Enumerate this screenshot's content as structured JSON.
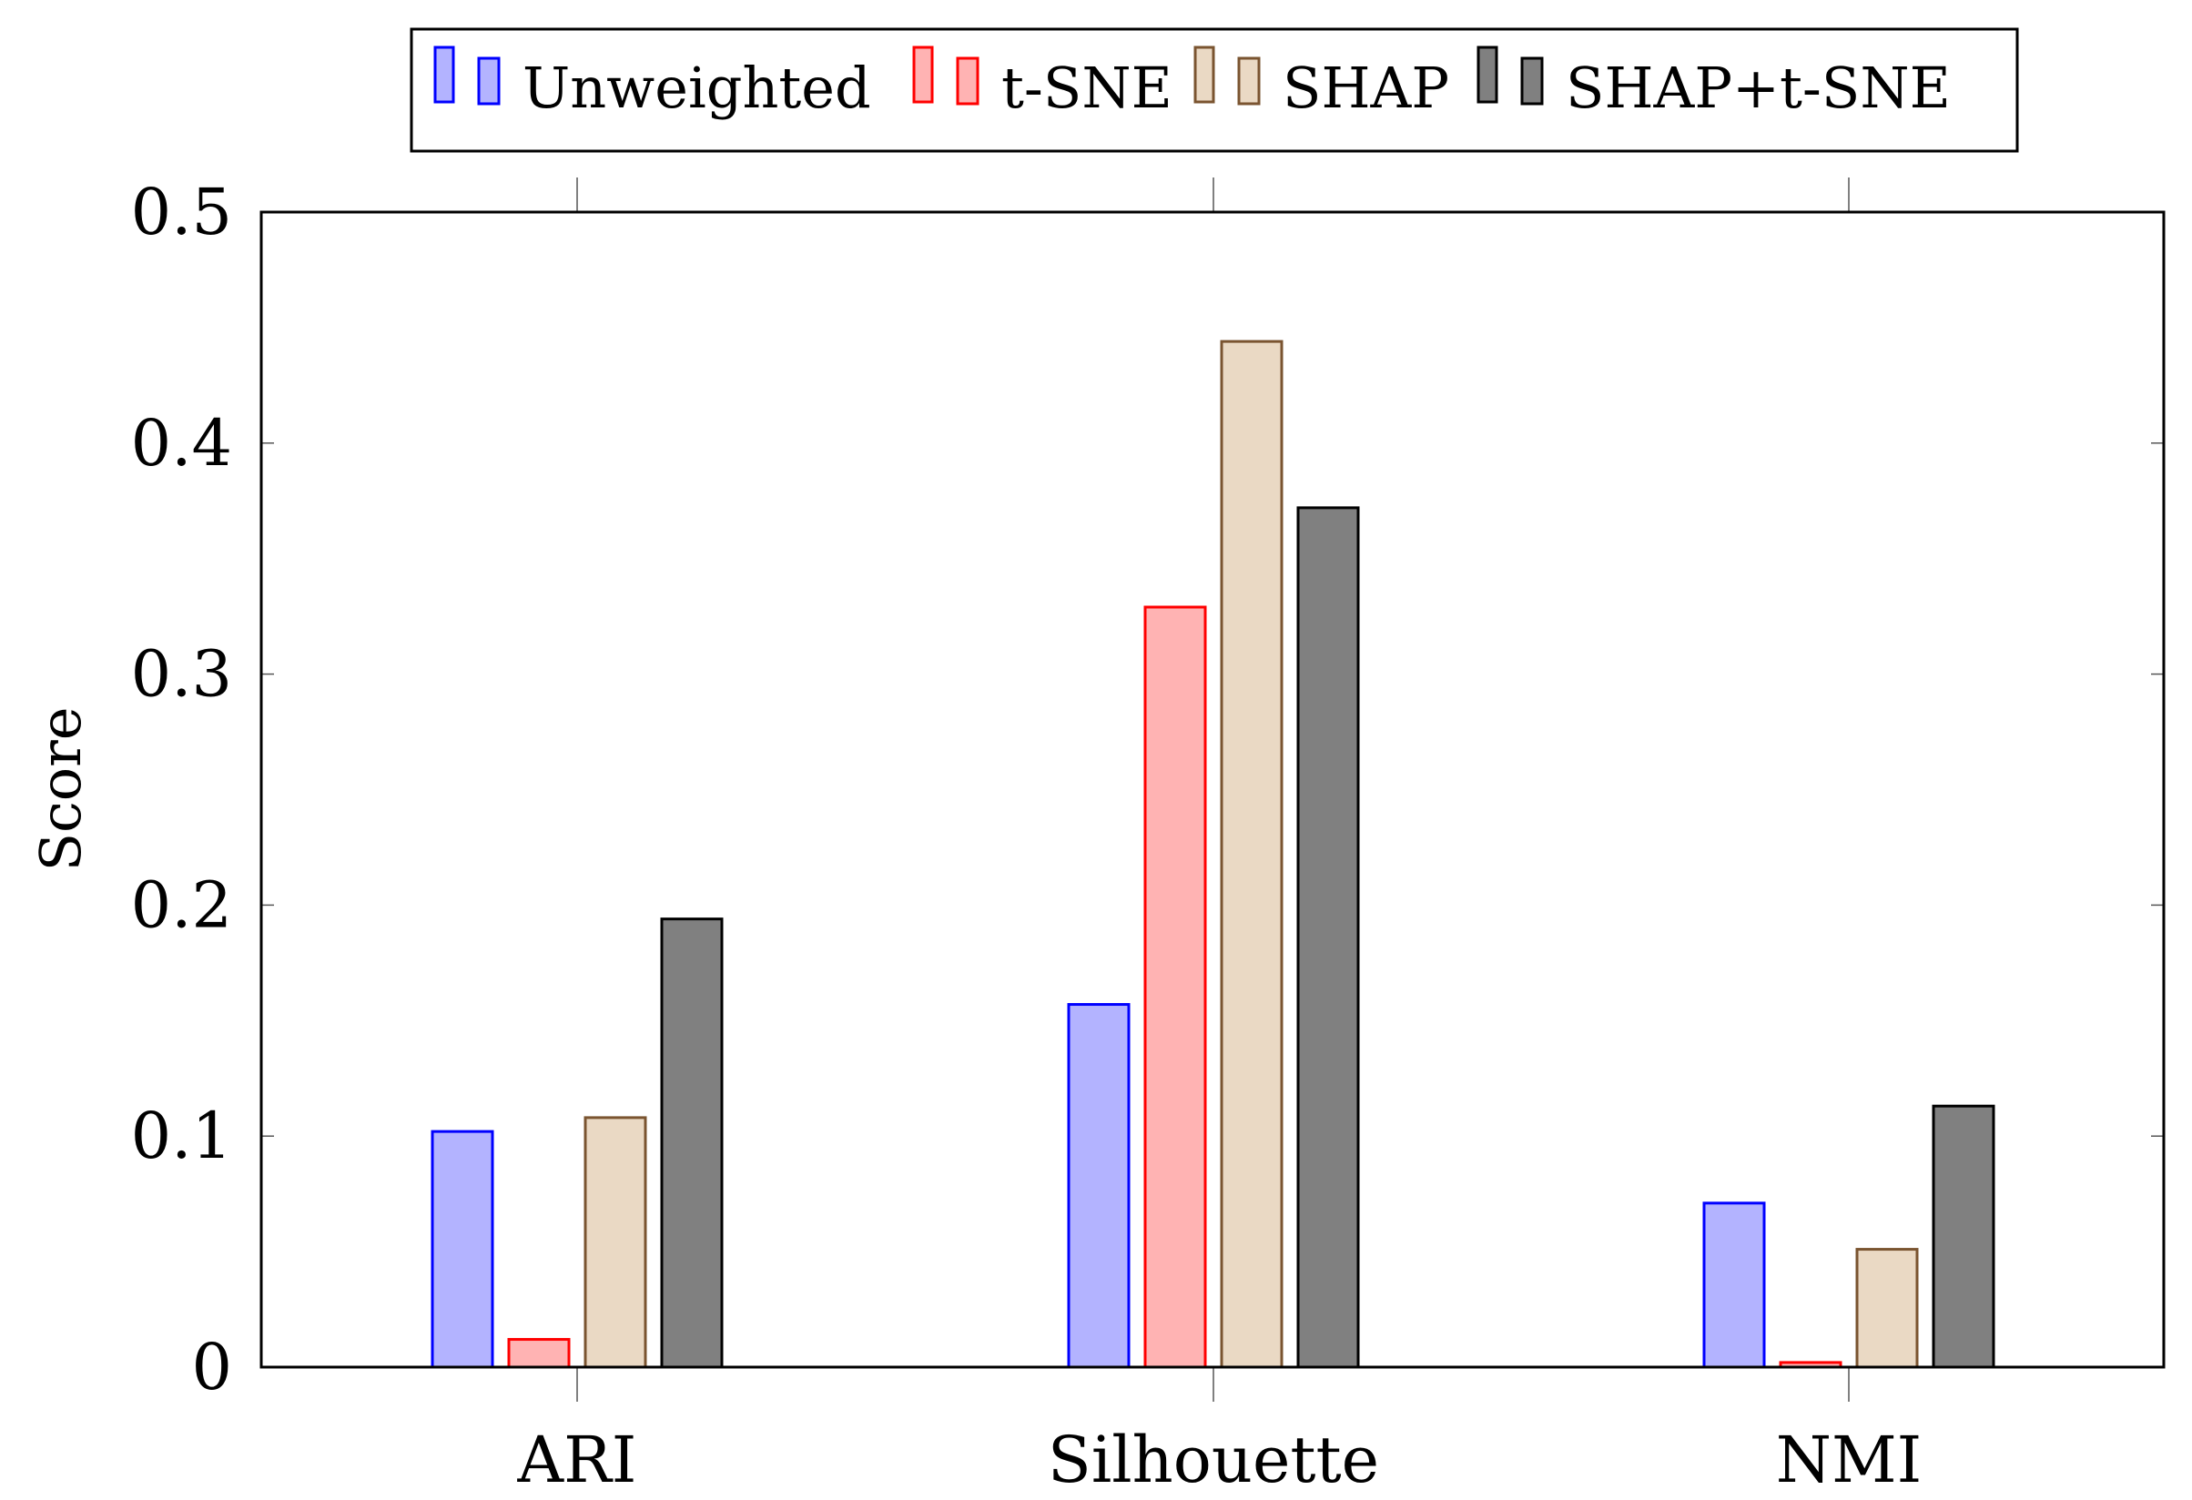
{
  "chart_data": {
    "type": "bar",
    "ylabel": "Score",
    "xlabel": "",
    "ylim": [
      0,
      0.5
    ],
    "yticks": [
      0,
      0.1,
      0.2,
      0.3,
      0.4,
      0.5
    ],
    "ytick_labels": [
      "0",
      "0.1",
      "0.2",
      "0.3",
      "0.4",
      "0.5"
    ],
    "categories": [
      "ARI",
      "Silhouette",
      "NMI"
    ],
    "series": [
      {
        "name": "Unweighted",
        "values": [
          0.102,
          0.157,
          0.071
        ],
        "fill": "#b3b3ff",
        "stroke": "#0000ff"
      },
      {
        "name": "t-SNE",
        "values": [
          0.012,
          0.329,
          0.002
        ],
        "fill": "#ffb3b3",
        "stroke": "#ff0000"
      },
      {
        "name": "SHAP",
        "values": [
          0.108,
          0.444,
          0.051
        ],
        "fill": "#ead9c4",
        "stroke": "#7a5430"
      },
      {
        "name": "SHAP+t-SNE",
        "values": [
          0.194,
          0.372,
          0.113
        ],
        "fill": "#808080",
        "stroke": "#000000"
      }
    ],
    "grid": false,
    "legend_position": "top-center"
  }
}
